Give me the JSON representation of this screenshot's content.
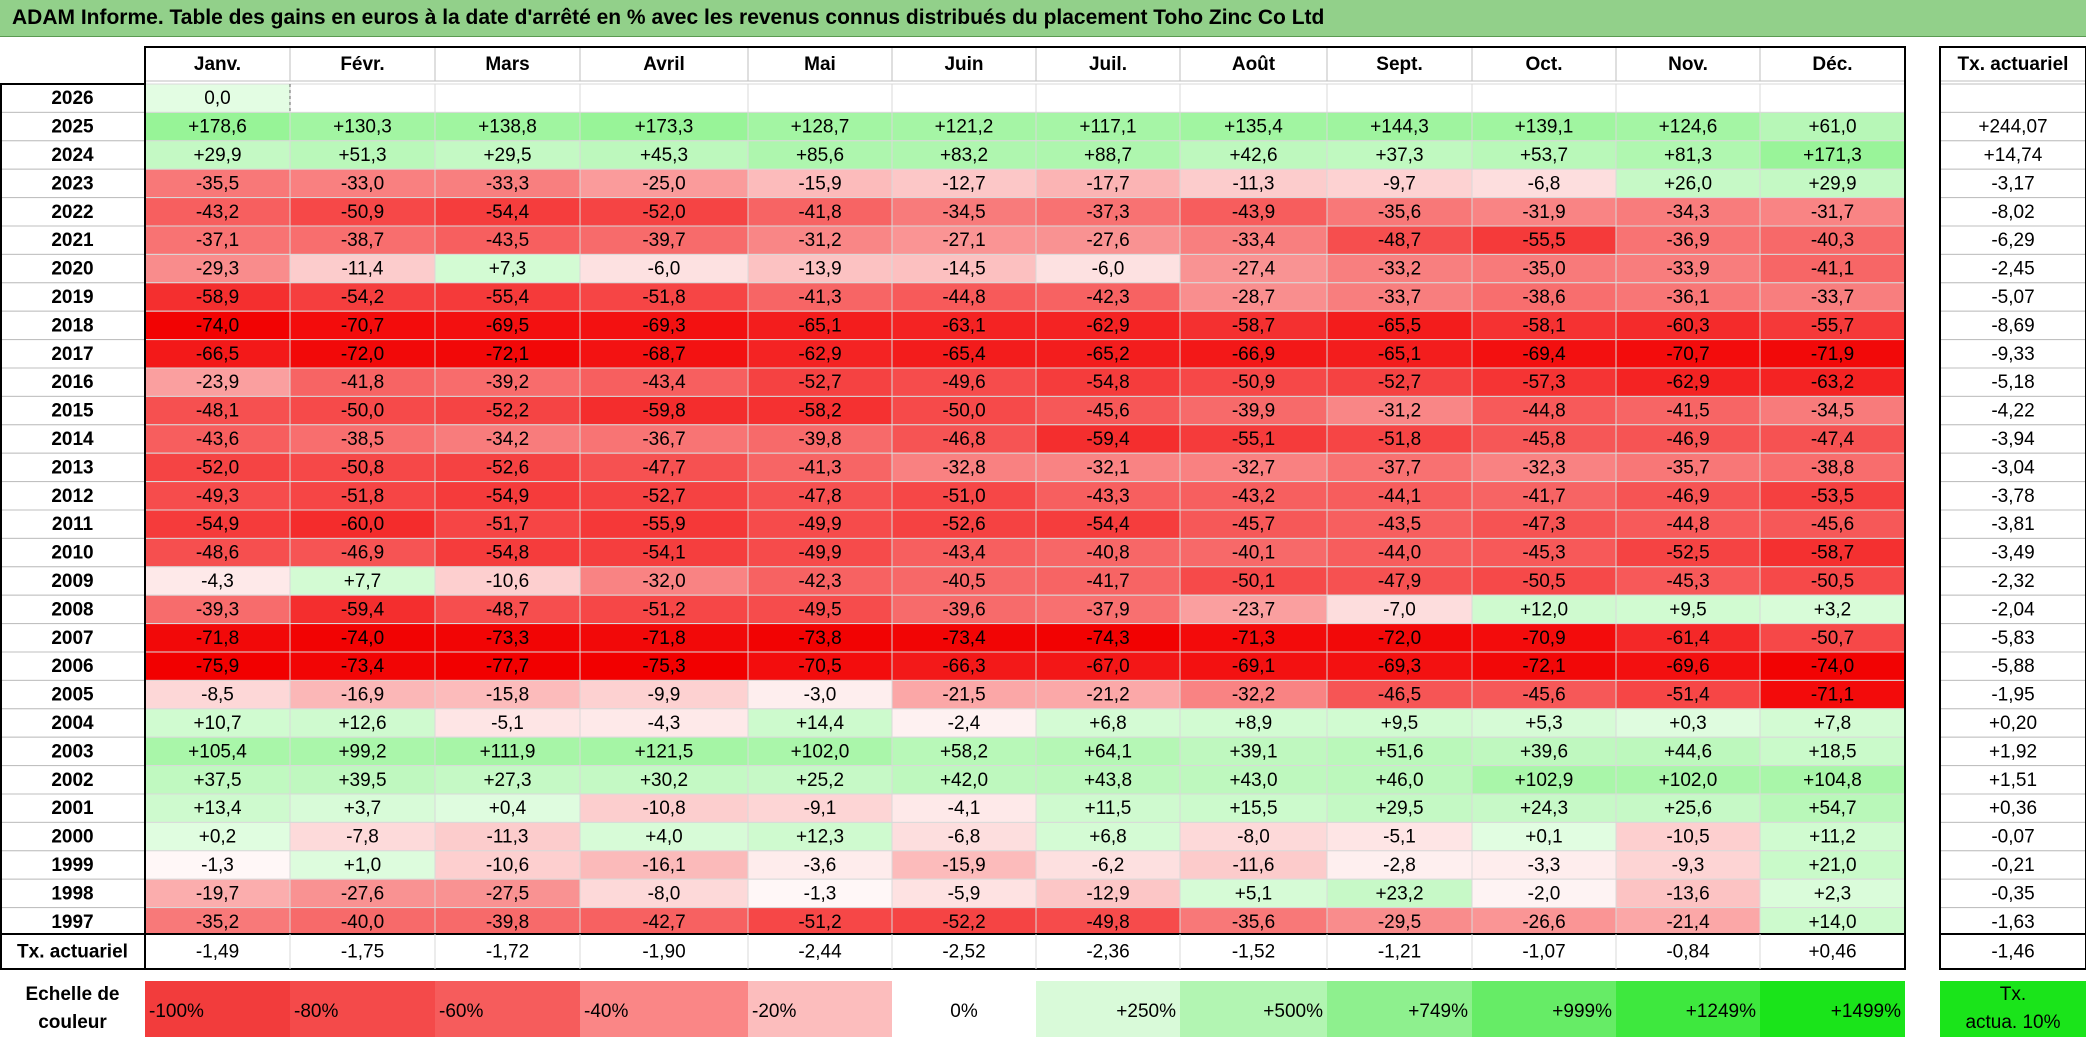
{
  "title": "ADAM Informe. Table des gains en euros à la date d'arrêté en % avec les revenus connus distribués du placement Toho Zinc Co Ltd",
  "chart_data": {
    "type": "heatmap",
    "months": [
      "Janv.",
      "Févr.",
      "Mars",
      "Avril",
      "Mai",
      "Juin",
      "Juil.",
      "Août",
      "Sept.",
      "Oct.",
      "Nov.",
      "Déc."
    ],
    "annual_header": "Tx. actuariel",
    "rows": [
      {
        "year": "2026",
        "values": [
          "0,0",
          "",
          "",
          "",
          "",
          "",
          "",
          "",
          "",
          "",
          "",
          ""
        ],
        "annual": ""
      },
      {
        "year": "2025",
        "values": [
          "+178,6",
          "+130,3",
          "+138,8",
          "+173,3",
          "+128,7",
          "+121,2",
          "+117,1",
          "+135,4",
          "+144,3",
          "+139,1",
          "+124,6",
          "+61,0"
        ],
        "annual": "+244,07"
      },
      {
        "year": "2024",
        "values": [
          "+29,9",
          "+51,3",
          "+29,5",
          "+45,3",
          "+85,6",
          "+83,2",
          "+88,7",
          "+42,6",
          "+37,3",
          "+53,7",
          "+81,3",
          "+171,3"
        ],
        "annual": "+14,74"
      },
      {
        "year": "2023",
        "values": [
          "-35,5",
          "-33,0",
          "-33,3",
          "-25,0",
          "-15,9",
          "-12,7",
          "-17,7",
          "-11,3",
          "-9,7",
          "-6,8",
          "+26,0",
          "+29,9"
        ],
        "annual": "-3,17"
      },
      {
        "year": "2022",
        "values": [
          "-43,2",
          "-50,9",
          "-54,4",
          "-52,0",
          "-41,8",
          "-34,5",
          "-37,3",
          "-43,9",
          "-35,6",
          "-31,9",
          "-34,3",
          "-31,7"
        ],
        "annual": "-8,02"
      },
      {
        "year": "2021",
        "values": [
          "-37,1",
          "-38,7",
          "-43,5",
          "-39,7",
          "-31,2",
          "-27,1",
          "-27,6",
          "-33,4",
          "-48,7",
          "-55,5",
          "-36,9",
          "-40,3"
        ],
        "annual": "-6,29"
      },
      {
        "year": "2020",
        "values": [
          "-29,3",
          "-11,4",
          "+7,3",
          "-6,0",
          "-13,9",
          "-14,5",
          "-6,0",
          "-27,4",
          "-33,2",
          "-35,0",
          "-33,9",
          "-41,1"
        ],
        "annual": "-2,45"
      },
      {
        "year": "2019",
        "values": [
          "-58,9",
          "-54,2",
          "-55,4",
          "-51,8",
          "-41,3",
          "-44,8",
          "-42,3",
          "-28,7",
          "-33,7",
          "-38,6",
          "-36,1",
          "-33,7"
        ],
        "annual": "-5,07"
      },
      {
        "year": "2018",
        "values": [
          "-74,0",
          "-70,7",
          "-69,5",
          "-69,3",
          "-65,1",
          "-63,1",
          "-62,9",
          "-58,7",
          "-65,5",
          "-58,1",
          "-60,3",
          "-55,7"
        ],
        "annual": "-8,69"
      },
      {
        "year": "2017",
        "values": [
          "-66,5",
          "-72,0",
          "-72,1",
          "-68,7",
          "-62,9",
          "-65,4",
          "-65,2",
          "-66,9",
          "-65,1",
          "-69,4",
          "-70,7",
          "-71,9"
        ],
        "annual": "-9,33"
      },
      {
        "year": "2016",
        "values": [
          "-23,9",
          "-41,8",
          "-39,2",
          "-43,4",
          "-52,7",
          "-49,6",
          "-54,8",
          "-50,9",
          "-52,7",
          "-57,3",
          "-62,9",
          "-63,2"
        ],
        "annual": "-5,18"
      },
      {
        "year": "2015",
        "values": [
          "-48,1",
          "-50,0",
          "-52,2",
          "-59,8",
          "-58,2",
          "-50,0",
          "-45,6",
          "-39,9",
          "-31,2",
          "-44,8",
          "-41,5",
          "-34,5"
        ],
        "annual": "-4,22"
      },
      {
        "year": "2014",
        "values": [
          "-43,6",
          "-38,5",
          "-34,2",
          "-36,7",
          "-39,8",
          "-46,8",
          "-59,4",
          "-55,1",
          "-51,8",
          "-45,8",
          "-46,9",
          "-47,4"
        ],
        "annual": "-3,94"
      },
      {
        "year": "2013",
        "values": [
          "-52,0",
          "-50,8",
          "-52,6",
          "-47,7",
          "-41,3",
          "-32,8",
          "-32,1",
          "-32,7",
          "-37,7",
          "-32,3",
          "-35,7",
          "-38,8"
        ],
        "annual": "-3,04"
      },
      {
        "year": "2012",
        "values": [
          "-49,3",
          "-51,8",
          "-54,9",
          "-52,7",
          "-47,8",
          "-51,0",
          "-43,3",
          "-43,2",
          "-44,1",
          "-41,7",
          "-46,9",
          "-53,5"
        ],
        "annual": "-3,78"
      },
      {
        "year": "2011",
        "values": [
          "-54,9",
          "-60,0",
          "-51,7",
          "-55,9",
          "-49,9",
          "-52,6",
          "-54,4",
          "-45,7",
          "-43,5",
          "-47,3",
          "-44,8",
          "-45,6"
        ],
        "annual": "-3,81"
      },
      {
        "year": "2010",
        "values": [
          "-48,6",
          "-46,9",
          "-54,8",
          "-54,1",
          "-49,9",
          "-43,4",
          "-40,8",
          "-40,1",
          "-44,0",
          "-45,3",
          "-52,5",
          "-58,7"
        ],
        "annual": "-3,49"
      },
      {
        "year": "2009",
        "values": [
          "-4,3",
          "+7,7",
          "-10,6",
          "-32,0",
          "-42,3",
          "-40,5",
          "-41,7",
          "-50,1",
          "-47,9",
          "-50,5",
          "-45,3",
          "-50,5"
        ],
        "annual": "-2,32"
      },
      {
        "year": "2008",
        "values": [
          "-39,3",
          "-59,4",
          "-48,7",
          "-51,2",
          "-49,5",
          "-39,6",
          "-37,9",
          "-23,7",
          "-7,0",
          "+12,0",
          "+9,5",
          "+3,2"
        ],
        "annual": "-2,04"
      },
      {
        "year": "2007",
        "values": [
          "-71,8",
          "-74,0",
          "-73,3",
          "-71,8",
          "-73,8",
          "-73,4",
          "-74,3",
          "-71,3",
          "-72,0",
          "-70,9",
          "-61,4",
          "-50,7"
        ],
        "annual": "-5,83"
      },
      {
        "year": "2006",
        "values": [
          "-75,9",
          "-73,4",
          "-77,7",
          "-75,3",
          "-70,5",
          "-66,3",
          "-67,0",
          "-69,1",
          "-69,3",
          "-72,1",
          "-69,6",
          "-74,0"
        ],
        "annual": "-5,88"
      },
      {
        "year": "2005",
        "values": [
          "-8,5",
          "-16,9",
          "-15,8",
          "-9,9",
          "-3,0",
          "-21,5",
          "-21,2",
          "-32,2",
          "-46,5",
          "-45,6",
          "-51,4",
          "-71,1"
        ],
        "annual": "-1,95"
      },
      {
        "year": "2004",
        "values": [
          "+10,7",
          "+12,6",
          "-5,1",
          "-4,3",
          "+14,4",
          "-2,4",
          "+6,8",
          "+8,9",
          "+9,5",
          "+5,3",
          "+0,3",
          "+7,8"
        ],
        "annual": "+0,20"
      },
      {
        "year": "2003",
        "values": [
          "+105,4",
          "+99,2",
          "+111,9",
          "+121,5",
          "+102,0",
          "+58,2",
          "+64,1",
          "+39,1",
          "+51,6",
          "+39,6",
          "+44,6",
          "+18,5"
        ],
        "annual": "+1,92"
      },
      {
        "year": "2002",
        "values": [
          "+37,5",
          "+39,5",
          "+27,3",
          "+30,2",
          "+25,2",
          "+42,0",
          "+43,8",
          "+43,0",
          "+46,0",
          "+102,9",
          "+102,0",
          "+104,8"
        ],
        "annual": "+1,51"
      },
      {
        "year": "2001",
        "values": [
          "+13,4",
          "+3,7",
          "+0,4",
          "-10,8",
          "-9,1",
          "-4,1",
          "+11,5",
          "+15,5",
          "+29,5",
          "+24,3",
          "+25,6",
          "+54,7"
        ],
        "annual": "+0,36"
      },
      {
        "year": "2000",
        "values": [
          "+0,2",
          "-7,8",
          "-11,3",
          "+4,0",
          "+12,3",
          "-6,8",
          "+6,8",
          "-8,0",
          "-5,1",
          "+0,1",
          "-10,5",
          "+11,2"
        ],
        "annual": "-0,07"
      },
      {
        "year": "1999",
        "values": [
          "-1,3",
          "+1,0",
          "-10,6",
          "-16,1",
          "-3,6",
          "-15,9",
          "-6,2",
          "-11,6",
          "-2,8",
          "-3,3",
          "-9,3",
          "+21,0"
        ],
        "annual": "-0,21"
      },
      {
        "year": "1998",
        "values": [
          "-19,7",
          "-27,6",
          "-27,5",
          "-8,0",
          "-1,3",
          "-5,9",
          "-12,9",
          "+5,1",
          "+23,2",
          "-2,0",
          "-13,6",
          "+2,3"
        ],
        "annual": "-0,35"
      },
      {
        "year": "1997",
        "values": [
          "-35,2",
          "-40,0",
          "-39,8",
          "-42,7",
          "-51,2",
          "-52,2",
          "-49,8",
          "-35,6",
          "-29,5",
          "-26,6",
          "-21,4",
          "+14,0"
        ],
        "annual": "-1,63"
      }
    ],
    "footer": {
      "label": "Tx. actuariel",
      "values": [
        "-1,49",
        "-1,75",
        "-1,72",
        "-1,90",
        "-2,44",
        "-2,52",
        "-2,36",
        "-1,52",
        "-1,21",
        "-1,07",
        "-0,84",
        "+0,46"
      ],
      "annual": "-1,46"
    },
    "scale": {
      "label_line1": "Echelle de",
      "label_line2": "couleur",
      "steps": [
        {
          "label": "-100%",
          "color": "#f23c3c"
        },
        {
          "label": "-80%",
          "color": "#f44a4a"
        },
        {
          "label": "-60%",
          "color": "#f65c5c"
        },
        {
          "label": "-40%",
          "color": "#fa8686"
        },
        {
          "label": "-20%",
          "color": "#fcbdbd"
        },
        {
          "label": "0%",
          "color": "#ffffff"
        },
        {
          "label": "+250%",
          "color": "#d9fad9"
        },
        {
          "label": "+500%",
          "color": "#b2f5b2"
        },
        {
          "label": "+749%",
          "color": "#8ef08e"
        },
        {
          "label": "+999%",
          "color": "#66ec66"
        },
        {
          "label": "+1249%",
          "color": "#3ee83e"
        },
        {
          "label": "+1499%",
          "color": "#1ae41a"
        }
      ],
      "annual_label_line1": "Tx.",
      "annual_label_line2": "actua. 10%",
      "annual_color": "#1ae41a"
    }
  }
}
